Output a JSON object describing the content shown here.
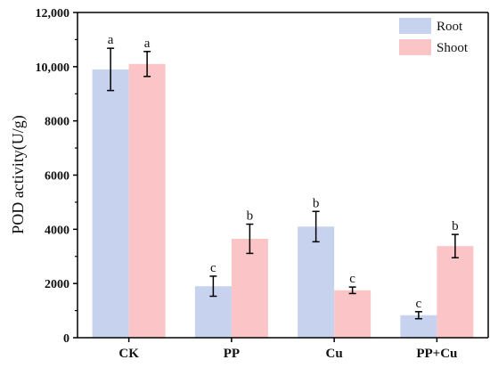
{
  "chart_data": {
    "type": "bar",
    "ylabel": "POD activity(U/g)",
    "ylim": [
      0,
      12000
    ],
    "yticks": [
      0,
      2000,
      4000,
      6000,
      8000,
      10000,
      12000
    ],
    "ytick_labels": [
      "0",
      "2000",
      "4000",
      "6000",
      "8000",
      "10,000",
      "12,000"
    ],
    "categories": [
      "CK",
      "PP",
      "Cu",
      "PP+Cu"
    ],
    "series": [
      {
        "name": "Root",
        "color": "#c7d2ee",
        "values": [
          9900,
          1900,
          4100,
          830
        ],
        "errors": [
          780,
          370,
          560,
          130
        ],
        "labels": [
          "a",
          "c",
          "b",
          "c"
        ]
      },
      {
        "name": "Shoot",
        "color": "#fbc4c6",
        "values": [
          10100,
          3650,
          1750,
          3380
        ],
        "errors": [
          460,
          540,
          120,
          430
        ],
        "labels": [
          "a",
          "b",
          "c",
          "b"
        ]
      }
    ],
    "legend_position": "top-right",
    "grid": false
  }
}
